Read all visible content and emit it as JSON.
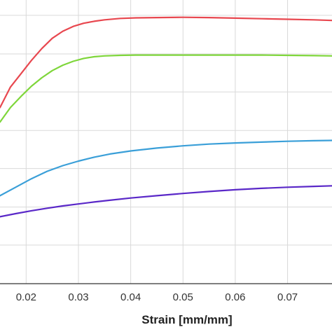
{
  "chart_data": {
    "type": "line",
    "title": "",
    "xlabel": "Strain [mm/mm]",
    "ylabel": "",
    "xlim": [
      0.015,
      0.0785
    ],
    "ylim": [
      0,
      1
    ],
    "grid": true,
    "x_ticks": [
      0.02,
      0.03,
      0.04,
      0.05,
      0.06,
      0.07
    ],
    "x_tick_labels": [
      "0.02",
      "0.03",
      "0.04",
      "0.05",
      "0.06",
      "0.07"
    ],
    "y_grid": [
      0.136,
      0.27,
      0.406,
      0.54,
      0.676,
      0.81,
      0.946
    ],
    "series": [
      {
        "color": "#e8474f",
        "x": [
          0.015,
          0.017,
          0.019,
          0.021,
          0.023,
          0.025,
          0.027,
          0.029,
          0.031,
          0.033,
          0.035,
          0.038,
          0.041,
          0.045,
          0.05,
          0.055,
          0.06,
          0.065,
          0.07,
          0.075,
          0.0785
        ],
        "y": [
          0.621,
          0.693,
          0.74,
          0.787,
          0.829,
          0.865,
          0.89,
          0.907,
          0.918,
          0.925,
          0.93,
          0.935,
          0.937,
          0.938,
          0.939,
          0.938,
          0.936,
          0.934,
          0.932,
          0.93,
          0.928
        ]
      },
      {
        "color": "#7ed63a",
        "x": [
          0.015,
          0.017,
          0.019,
          0.021,
          0.023,
          0.025,
          0.027,
          0.029,
          0.031,
          0.033,
          0.035,
          0.038,
          0.041,
          0.045,
          0.05,
          0.055,
          0.06,
          0.065,
          0.07,
          0.075,
          0.0785
        ],
        "y": [
          0.57,
          0.621,
          0.66,
          0.696,
          0.726,
          0.751,
          0.77,
          0.784,
          0.794,
          0.8,
          0.803,
          0.805,
          0.806,
          0.806,
          0.806,
          0.806,
          0.806,
          0.806,
          0.805,
          0.804,
          0.803
        ]
      },
      {
        "color": "#3a9fd8",
        "x": [
          0.015,
          0.018,
          0.021,
          0.024,
          0.027,
          0.03,
          0.033,
          0.036,
          0.04,
          0.045,
          0.05,
          0.055,
          0.06,
          0.065,
          0.07,
          0.075,
          0.0785
        ],
        "y": [
          0.31,
          0.34,
          0.37,
          0.396,
          0.416,
          0.432,
          0.446,
          0.457,
          0.468,
          0.478,
          0.486,
          0.492,
          0.496,
          0.499,
          0.502,
          0.504,
          0.505
        ]
      },
      {
        "color": "#5a28c8",
        "x": [
          0.015,
          0.018,
          0.021,
          0.024,
          0.027,
          0.03,
          0.033,
          0.036,
          0.04,
          0.045,
          0.05,
          0.055,
          0.06,
          0.065,
          0.07,
          0.075,
          0.0785
        ],
        "y": [
          0.236,
          0.247,
          0.257,
          0.266,
          0.274,
          0.281,
          0.288,
          0.294,
          0.302,
          0.31,
          0.318,
          0.325,
          0.331,
          0.336,
          0.34,
          0.343,
          0.345
        ]
      }
    ]
  }
}
